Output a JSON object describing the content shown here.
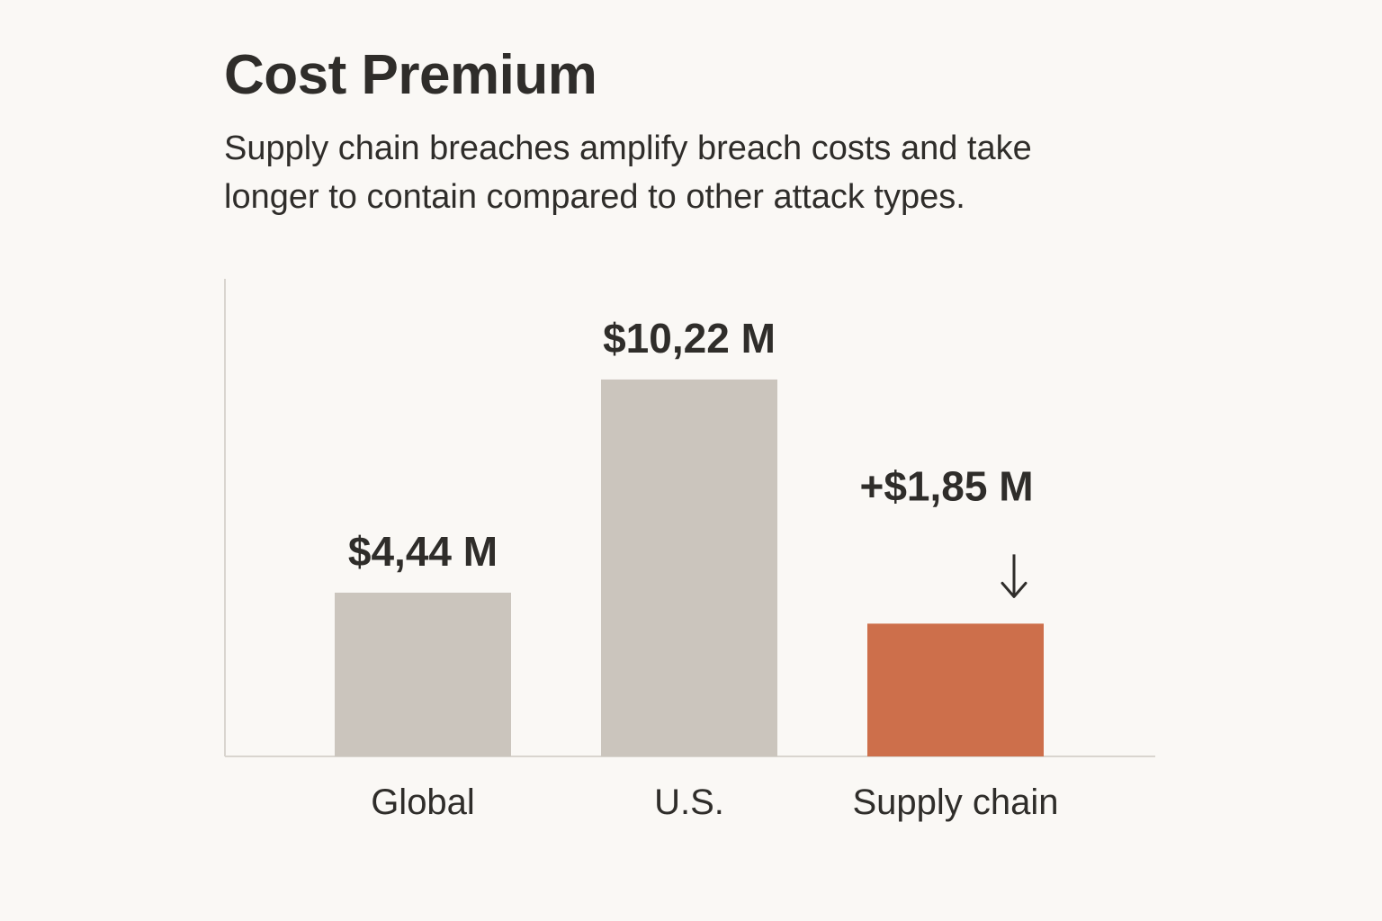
{
  "chart_data": {
    "type": "bar",
    "title": "Cost Premium",
    "subtitle": "Supply chain breaches amplify breach costs and take longer to contain compared to other attack types.",
    "categories": [
      "Global",
      "U.S.",
      "Supply chain"
    ],
    "values": [
      4.44,
      10.22,
      3.6
    ],
    "value_labels": [
      "$4,44 M",
      "$10,22 M",
      ""
    ],
    "bar_colors": [
      "#cbc5bd",
      "#cbc5bd",
      "#cd6f4b"
    ],
    "annotation": {
      "category": "Supply chain",
      "text": "+$1,85 M",
      "arrow": "↓"
    },
    "xlabel": "",
    "ylabel": "",
    "ylim": [
      0,
      12.95
    ],
    "grid": false,
    "axis_color": "#d9d5cf"
  }
}
